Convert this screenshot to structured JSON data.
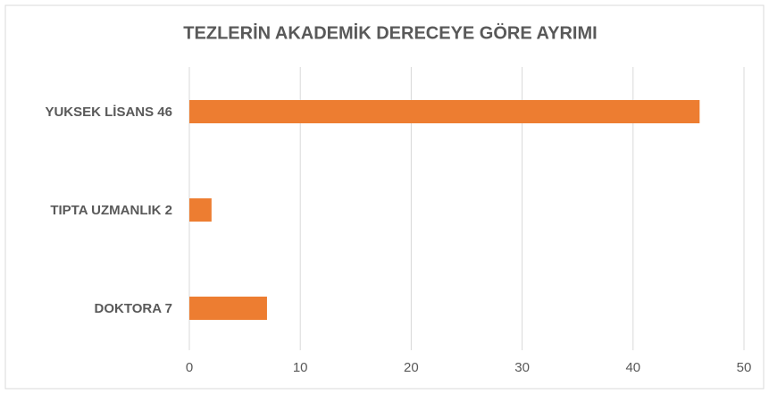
{
  "chart_data": {
    "type": "bar",
    "orientation": "horizontal",
    "title": "TEZLERİN AKADEMİK DERECEYE GÖRE AYRIMI",
    "categories": [
      "YUKSEK LİSANS 46",
      "TIPTA UZMANLIK 2",
      "DOKTORA 7"
    ],
    "values": [
      46,
      2,
      7
    ],
    "color": "#ed7d31",
    "xlim": [
      0,
      50
    ],
    "xticks": [
      0,
      10,
      20,
      30,
      40,
      50
    ],
    "grid": true
  }
}
